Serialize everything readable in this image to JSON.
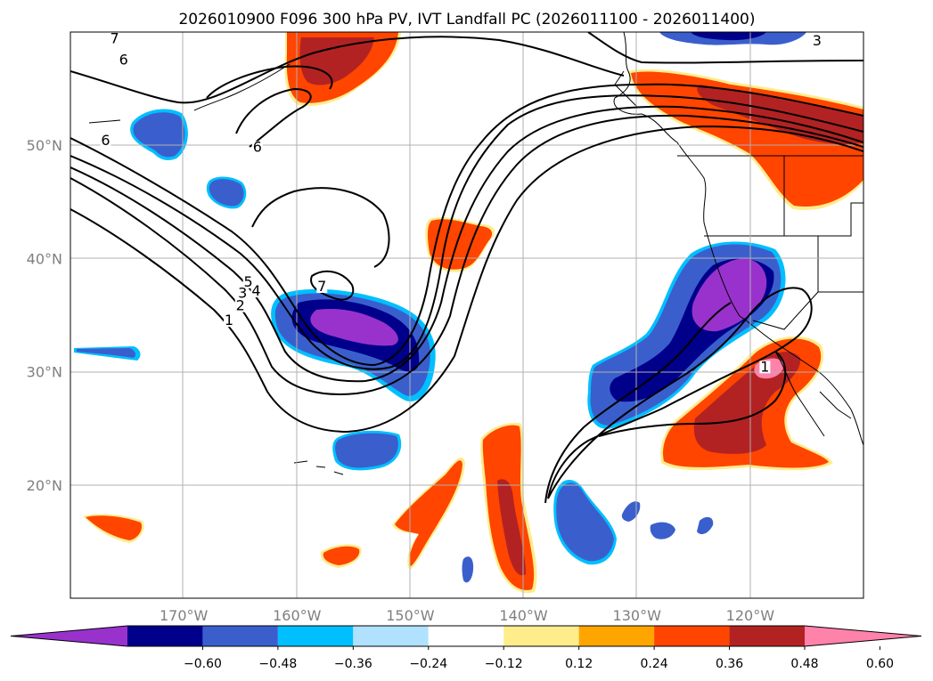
{
  "chart_data": {
    "type": "map-contour",
    "title": "2026010900 F096 300 hPa PV, IVT Landfall PC (2026011100 - 2026011400)",
    "lon_range": [
      -180,
      -110
    ],
    "lat_range": [
      10,
      60
    ],
    "lat_ticks": [
      {
        "value": 50,
        "label": "50°N"
      },
      {
        "value": 40,
        "label": "40°N"
      },
      {
        "value": 30,
        "label": "30°N"
      },
      {
        "value": 20,
        "label": "20°N"
      }
    ],
    "lon_ticks": [
      {
        "value": -170,
        "label": "170°W"
      },
      {
        "value": -160,
        "label": "160°W"
      },
      {
        "value": -150,
        "label": "150°W"
      },
      {
        "value": -140,
        "label": "140°W"
      },
      {
        "value": -130,
        "label": "130°W"
      },
      {
        "value": -120,
        "label": "120°W"
      }
    ],
    "colorbar": {
      "ticks": [
        "−0.60",
        "−0.48",
        "−0.36",
        "−0.24",
        "−0.12",
        "0.12",
        "0.24",
        "0.36",
        "0.48",
        "0.60"
      ],
      "colors": [
        "#9932cc",
        "#00008b",
        "#3a5fcd",
        "#00bfff",
        "#b0e2ff",
        "#ffffff",
        "#ffec8b",
        "#ffa500",
        "#ff4500",
        "#b22222",
        "#ff82ab"
      ]
    },
    "contour_labels": [
      {
        "text": "7",
        "lon": -176.1,
        "lat": 59.1
      },
      {
        "text": "6",
        "lon": -175.3,
        "lat": 57.2
      },
      {
        "text": "6",
        "lon": -176.9,
        "lat": 50.1
      },
      {
        "text": "6",
        "lon": -163.5,
        "lat": 49.5
      },
      {
        "text": "3",
        "lon": -114.1,
        "lat": 58.9
      },
      {
        "text": "7",
        "lon": -157.8,
        "lat": 37.2
      },
      {
        "text": "5",
        "lon": -164.3,
        "lat": 37.6
      },
      {
        "text": "4",
        "lon": -163.6,
        "lat": 36.8
      },
      {
        "text": "3",
        "lon": -164.8,
        "lat": 36.6
      },
      {
        "text": "2",
        "lon": -165.0,
        "lat": 35.5
      },
      {
        "text": "1",
        "lon": -166.0,
        "lat": 34.2
      },
      {
        "text": "1",
        "lon": -118.7,
        "lat": 30.1
      }
    ]
  }
}
